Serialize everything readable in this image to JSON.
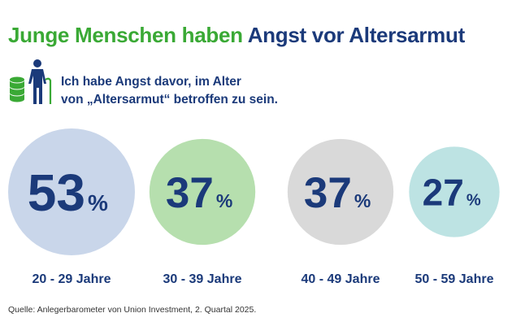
{
  "title": {
    "part1": "Junge Menschen haben",
    "part2": "Angst vor Altersarmut"
  },
  "icon": "elderly-person-with-coins-icon",
  "subtitle": {
    "line1": "Ich habe Angst davor, im Alter",
    "line2": "von „Altersarmut“ betroffen zu sein."
  },
  "chart_data": {
    "type": "bubble",
    "title": "",
    "unit": "%",
    "categories": [
      "20 - 29 Jahre",
      "30 - 39 Jahre",
      "40 - 49 Jahre",
      "50 - 59 Jahre"
    ],
    "values": [
      53,
      37,
      37,
      27
    ],
    "colors": [
      "#c9d6ea",
      "#b6dfae",
      "#d9d9d9",
      "#bde3e3"
    ],
    "label_color": "#1b3a7a"
  },
  "source": "Quelle: Anlegerbarometer von Union Investment, 2. Quartal 2025.",
  "colors": {
    "green": "#3aa935",
    "navy": "#1b3a7a"
  }
}
